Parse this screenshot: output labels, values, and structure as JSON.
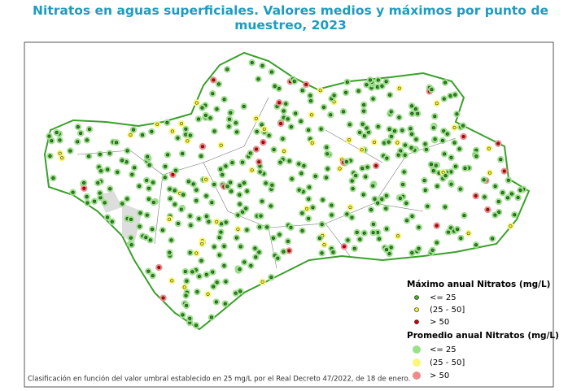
{
  "title": "Nitratos en aguas superficiales. Valores medios y máximos por punto de muestreo, 2023",
  "legend": {
    "maximum": {
      "title": "Máximo anual Nitratos (mg/L)",
      "items": [
        "<= 25",
        "(25 - 50]",
        "> 50"
      ]
    },
    "average": {
      "title": "Promedio anual Nitratos (mg/L)",
      "items": [
        "<= 25",
        "(25 - 50]",
        "> 50"
      ]
    }
  },
  "footnote": "Clasificación en función del valor umbral establecido en 25 mg/L por el Real Decreto 47/2022, de 18 de enero."
}
